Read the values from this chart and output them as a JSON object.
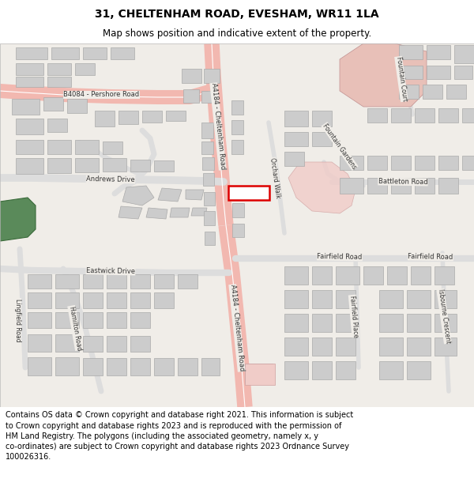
{
  "title": "31, CHELTENHAM ROAD, EVESHAM, WR11 1LA",
  "subtitle": "Map shows position and indicative extent of the property.",
  "footer": "Contains OS data © Crown copyright and database right 2021. This information is subject\nto Crown copyright and database rights 2023 and is reproduced with the permission of\nHM Land Registry. The polygons (including the associated geometry, namely x, y\nco-ordinates) are subject to Crown copyright and database rights 2023 Ordnance Survey\n100026316.",
  "map_bg": "#f0ede8",
  "road_main_color": "#f2b8b0",
  "road_minor_color": "#dddddd",
  "building_fill": "#cccccc",
  "building_edge": "#aaaaaa",
  "highlight_fill": "#f0c8c0",
  "highlight_edge": "#d09090",
  "green_fill": "#5a8a5a",
  "green_edge": "#3a6a3a",
  "red_box_color": "#dd0000",
  "title_fontsize": 10,
  "subtitle_fontsize": 8.5,
  "footer_fontsize": 7,
  "label_fontsize": 6,
  "label_color": "#333333"
}
